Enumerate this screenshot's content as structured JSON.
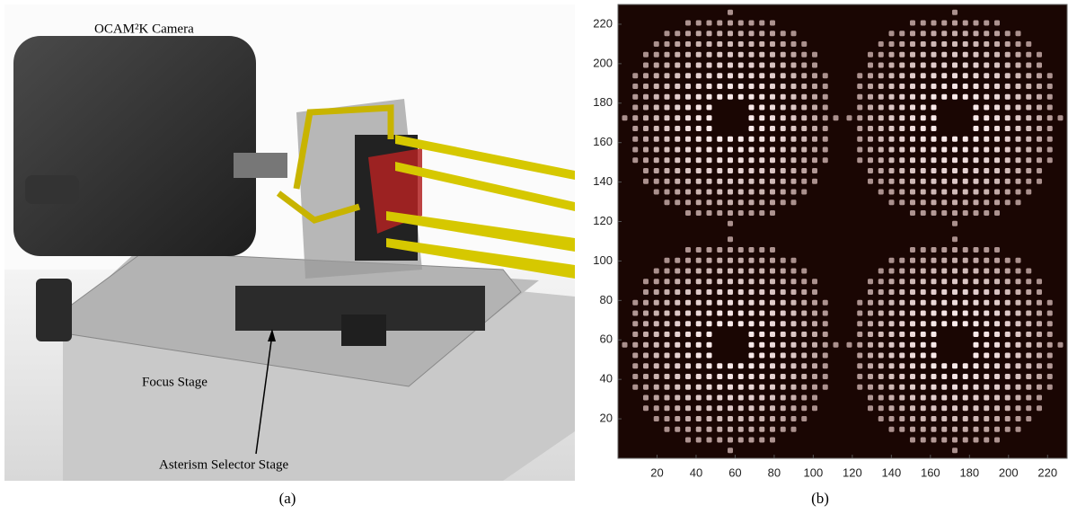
{
  "panel_a": {
    "labels": [
      "OCAM²K Camera",
      "Focus Stage",
      "Asterism Selector Stage"
    ],
    "caption": "(a)"
  },
  "chart_data": {
    "type": "image",
    "caption": "(b)",
    "xlim": [
      0,
      230
    ],
    "ylim": [
      0,
      230
    ],
    "xticks": [
      20,
      40,
      60,
      80,
      100,
      120,
      140,
      160,
      180,
      200,
      220
    ],
    "yticks": [
      20,
      40,
      60,
      80,
      100,
      120,
      140,
      160,
      180,
      200,
      220
    ]
  }
}
